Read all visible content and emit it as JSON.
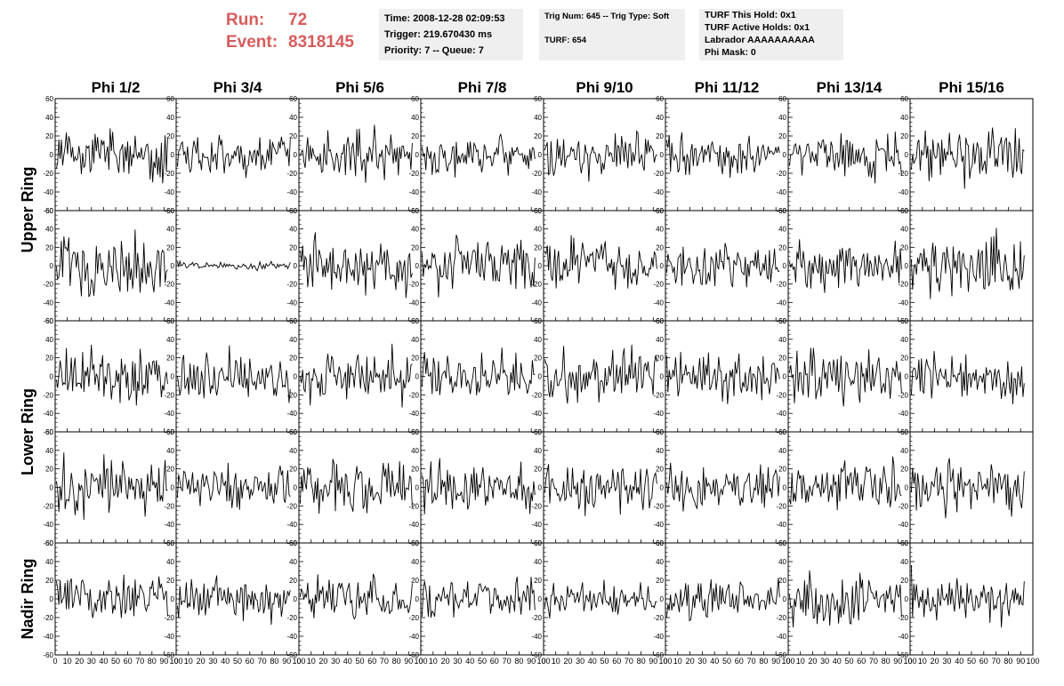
{
  "header": {
    "run_label": "Run:",
    "run_value": "72",
    "event_label": "Event:",
    "event_value": "8318145",
    "time": "Time: 2008-12-28 02:09:53",
    "trigger": "Trigger: 219.670430 ms",
    "priority": "Priority: 7 -- Queue: 7",
    "trig_num": "Trig Num: 645 -- Trig Type: Soft",
    "turf": "TURF: 654",
    "turf_hold": "TURF This Hold: 0x1",
    "turf_active": "TURF Active Holds: 0x1",
    "labrador": "Labrador AAAAAAAAAA",
    "phi_mask": "Phi Mask: 0"
  },
  "chart_data": {
    "type": "line",
    "columns": [
      "Phi 1/2",
      "Phi 3/4",
      "Phi 5/6",
      "Phi 7/8",
      "Phi 9/10",
      "Phi 11/12",
      "Phi 13/14",
      "Phi 15/16"
    ],
    "ring_labels": [
      {
        "label": "Upper Ring",
        "rows": [
          0,
          1
        ]
      },
      {
        "label": "Lower Ring",
        "rows": [
          2,
          3
        ]
      },
      {
        "label": "Nadir Ring",
        "rows": [
          4
        ]
      }
    ],
    "ylim": [
      -60,
      60
    ],
    "xlim": [
      0,
      100
    ],
    "y_ticks": [
      -60,
      -40,
      -20,
      0,
      20,
      40,
      60
    ],
    "x_ticks": [
      0,
      10,
      20,
      30,
      40,
      50,
      60,
      70,
      80,
      90,
      100
    ],
    "samples": 90,
    "amplitude": [
      [
        12,
        10,
        13,
        10,
        11,
        11,
        12,
        14
      ],
      [
        18,
        2,
        14,
        14,
        13,
        11,
        12,
        17
      ],
      [
        14,
        13,
        14,
        12,
        13,
        13,
        15,
        11
      ],
      [
        15,
        11,
        13,
        13,
        12,
        12,
        12,
        13
      ],
      [
        13,
        11,
        10,
        11,
        10,
        11,
        13,
        13
      ]
    ],
    "color": "#000000"
  }
}
